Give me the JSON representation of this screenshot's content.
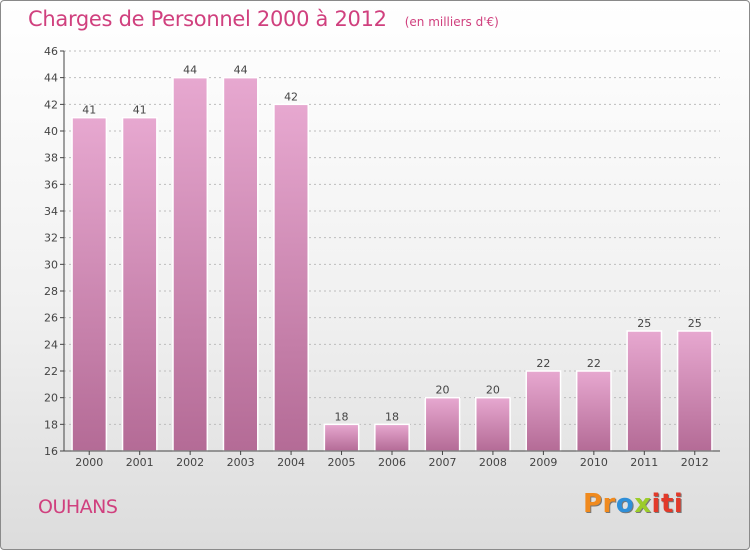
{
  "header": {
    "title": "Charges de Personnel 2000 à 2012",
    "subtitle": "(en milliers d'€)"
  },
  "footer": {
    "city": "OUHANS"
  },
  "logo": {
    "text": "Proxiti",
    "parts": [
      "Pr",
      "o",
      "x",
      "iti"
    ],
    "colors": [
      "#f08a1e",
      "#2f8fd8",
      "#9ccc2a",
      "#e23a2a"
    ]
  },
  "colors": {
    "accent": "#d0407e",
    "bar_top": "#e7a8d0",
    "bar_bottom": "#b46b96",
    "axis": "#444444"
  },
  "chart_data": {
    "type": "bar",
    "title": "Charges de Personnel 2000 à 2012",
    "subtitle": "(en milliers d'€)",
    "xlabel": "",
    "ylabel": "",
    "categories": [
      "2000",
      "2001",
      "2002",
      "2003",
      "2004",
      "2005",
      "2006",
      "2007",
      "2008",
      "2009",
      "2010",
      "2011",
      "2012"
    ],
    "values": [
      41,
      41,
      44,
      44,
      42,
      18,
      18,
      20,
      20,
      22,
      22,
      25,
      25
    ],
    "ylim": [
      16,
      46
    ],
    "yticks": [
      16,
      18,
      20,
      22,
      24,
      26,
      28,
      30,
      32,
      34,
      36,
      38,
      40,
      42,
      44,
      46
    ],
    "grid": true,
    "data_labels": true
  }
}
